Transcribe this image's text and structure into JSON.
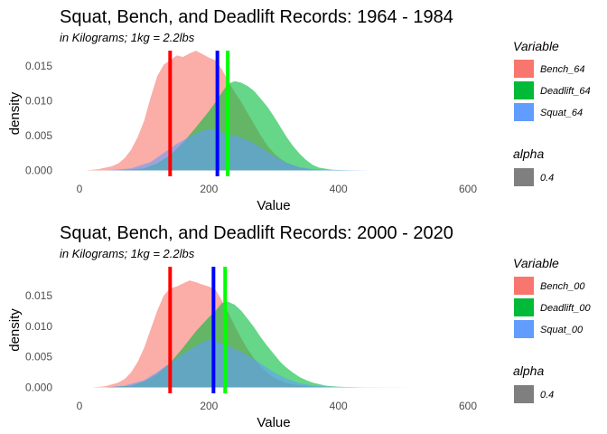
{
  "chart_data": [
    {
      "type": "area",
      "title": "Squat, Bench, and Deadlift Records: 1964 - 1984",
      "subtitle": "in Kilograms; 1kg = 2.2lbs",
      "xlabel": "Value",
      "ylabel": "density",
      "xlim": [
        0,
        600
      ],
      "ylim": [
        0,
        0.0195
      ],
      "x_ticks": [
        0,
        200,
        400,
        600
      ],
      "y_ticks": [
        0.0,
        0.005,
        0.01,
        0.015
      ],
      "y_tick_labels": [
        "0.000",
        "0.005",
        "0.010",
        "0.015"
      ],
      "grid": false,
      "legend_position": "right",
      "legend_title": "Variable",
      "alpha_title": "alpha",
      "alpha_value": "0.4",
      "series": [
        {
          "name": "Bench_64",
          "color": "#F8766D",
          "points": [
            [
              10,
              0
            ],
            [
              30,
              0.0002
            ],
            [
              50,
              0.0006
            ],
            [
              60,
              0.001
            ],
            [
              70,
              0.0018
            ],
            [
              80,
              0.003
            ],
            [
              90,
              0.0048
            ],
            [
              100,
              0.0072
            ],
            [
              110,
              0.0105
            ],
            [
              120,
              0.0135
            ],
            [
              130,
              0.0152
            ],
            [
              140,
              0.0158
            ],
            [
              150,
              0.0165
            ],
            [
              160,
              0.0163
            ],
            [
              170,
              0.0168
            ],
            [
              180,
              0.0172
            ],
            [
              190,
              0.0167
            ],
            [
              200,
              0.0162
            ],
            [
              210,
              0.0158
            ],
            [
              220,
              0.0145
            ],
            [
              230,
              0.0128
            ],
            [
              240,
              0.0112
            ],
            [
              250,
              0.0098
            ],
            [
              260,
              0.0082
            ],
            [
              270,
              0.0066
            ],
            [
              280,
              0.005
            ],
            [
              290,
              0.0036
            ],
            [
              300,
              0.0025
            ],
            [
              310,
              0.0017
            ],
            [
              320,
              0.0011
            ],
            [
              330,
              0.0007
            ],
            [
              340,
              0.0004
            ],
            [
              360,
              0.0001
            ],
            [
              380,
              0
            ]
          ]
        },
        {
          "name": "Deadlift_64",
          "color": "#00BA38",
          "points": [
            [
              60,
              0
            ],
            [
              100,
              0.0003
            ],
            [
              120,
              0.001
            ],
            [
              140,
              0.0022
            ],
            [
              160,
              0.004
            ],
            [
              180,
              0.0062
            ],
            [
              200,
              0.0085
            ],
            [
              210,
              0.0098
            ],
            [
              220,
              0.0112
            ],
            [
              230,
              0.0125
            ],
            [
              240,
              0.0128
            ],
            [
              250,
              0.0126
            ],
            [
              260,
              0.0121
            ],
            [
              270,
              0.0114
            ],
            [
              280,
              0.0103
            ],
            [
              290,
              0.0092
            ],
            [
              300,
              0.0078
            ],
            [
              310,
              0.0063
            ],
            [
              320,
              0.0048
            ],
            [
              330,
              0.0035
            ],
            [
              340,
              0.0024
            ],
            [
              350,
              0.0015
            ],
            [
              360,
              0.0008
            ],
            [
              370,
              0.0004
            ],
            [
              390,
              0.0001
            ],
            [
              420,
              0
            ]
          ]
        },
        {
          "name": "Squat_64",
          "color": "#619CFF",
          "points": [
            [
              40,
              0
            ],
            [
              80,
              0.0003
            ],
            [
              110,
              0.0012
            ],
            [
              130,
              0.0025
            ],
            [
              150,
              0.0038
            ],
            [
              170,
              0.0048
            ],
            [
              180,
              0.0053
            ],
            [
              190,
              0.0057
            ],
            [
              200,
              0.006
            ],
            [
              210,
              0.0058
            ],
            [
              220,
              0.0055
            ],
            [
              230,
              0.0052
            ],
            [
              240,
              0.005
            ],
            [
              250,
              0.0047
            ],
            [
              260,
              0.0043
            ],
            [
              270,
              0.0039
            ],
            [
              280,
              0.0033
            ],
            [
              290,
              0.0027
            ],
            [
              300,
              0.0021
            ],
            [
              320,
              0.0011
            ],
            [
              340,
              0.0005
            ],
            [
              360,
              0.0002
            ],
            [
              380,
              0.0001
            ],
            [
              450,
              0
            ]
          ]
        }
      ],
      "vlines": [
        {
          "x": 140,
          "color": "#FF0000"
        },
        {
          "x": 213,
          "color": "#0000FF"
        },
        {
          "x": 229,
          "color": "#00FF00"
        }
      ]
    },
    {
      "type": "area",
      "title": "Squat, Bench, and Deadlift Records: 2000 - 2020",
      "subtitle": "in Kilograms; 1kg = 2.2lbs",
      "xlabel": "Value",
      "ylabel": "density",
      "xlim": [
        0,
        600
      ],
      "ylim": [
        0,
        0.0195
      ],
      "x_ticks": [
        0,
        200,
        400,
        600
      ],
      "y_ticks": [
        0.0,
        0.005,
        0.01,
        0.015
      ],
      "y_tick_labels": [
        "0.000",
        "0.005",
        "0.010",
        "0.015"
      ],
      "grid": false,
      "legend_position": "right",
      "legend_title": "Variable",
      "alpha_title": "alpha",
      "alpha_value": "0.4",
      "series": [
        {
          "name": "Bench_00",
          "color": "#F8766D",
          "points": [
            [
              20,
              0
            ],
            [
              40,
              0.0002
            ],
            [
              60,
              0.0008
            ],
            [
              70,
              0.0014
            ],
            [
              80,
              0.0025
            ],
            [
              90,
              0.0042
            ],
            [
              100,
              0.0065
            ],
            [
              110,
              0.0095
            ],
            [
              120,
              0.0125
            ],
            [
              130,
              0.015
            ],
            [
              140,
              0.0162
            ],
            [
              150,
              0.0165
            ],
            [
              160,
              0.017
            ],
            [
              170,
              0.0175
            ],
            [
              180,
              0.0172
            ],
            [
              190,
              0.0168
            ],
            [
              200,
              0.0165
            ],
            [
              210,
              0.016
            ],
            [
              220,
              0.0142
            ],
            [
              230,
              0.0122
            ],
            [
              240,
              0.01
            ],
            [
              250,
              0.008
            ],
            [
              260,
              0.0062
            ],
            [
              270,
              0.0047
            ],
            [
              280,
              0.0034
            ],
            [
              290,
              0.0024
            ],
            [
              300,
              0.0016
            ],
            [
              320,
              0.0007
            ],
            [
              340,
              0.0003
            ],
            [
              360,
              0.0001
            ],
            [
              380,
              0
            ]
          ]
        },
        {
          "name": "Deadlift_00",
          "color": "#00BA38",
          "points": [
            [
              40,
              0
            ],
            [
              80,
              0.0003
            ],
            [
              100,
              0.001
            ],
            [
              120,
              0.0022
            ],
            [
              140,
              0.004
            ],
            [
              160,
              0.0065
            ],
            [
              180,
              0.0092
            ],
            [
              200,
              0.0115
            ],
            [
              210,
              0.0125
            ],
            [
              220,
              0.0138
            ],
            [
              230,
              0.014
            ],
            [
              240,
              0.0135
            ],
            [
              250,
              0.0125
            ],
            [
              260,
              0.0112
            ],
            [
              270,
              0.0098
            ],
            [
              280,
              0.0082
            ],
            [
              290,
              0.0068
            ],
            [
              300,
              0.0055
            ],
            [
              310,
              0.0042
            ],
            [
              320,
              0.0032
            ],
            [
              330,
              0.0024
            ],
            [
              340,
              0.0017
            ],
            [
              350,
              0.0012
            ],
            [
              360,
              0.0008
            ],
            [
              380,
              0.0003
            ],
            [
              400,
              0.0001
            ],
            [
              440,
              0
            ]
          ]
        },
        {
          "name": "Squat_00",
          "color": "#619CFF",
          "points": [
            [
              40,
              0
            ],
            [
              70,
              0.0003
            ],
            [
              100,
              0.0012
            ],
            [
              120,
              0.0025
            ],
            [
              140,
              0.004
            ],
            [
              160,
              0.0055
            ],
            [
              180,
              0.0068
            ],
            [
              190,
              0.0074
            ],
            [
              200,
              0.0078
            ],
            [
              210,
              0.0076
            ],
            [
              220,
              0.0072
            ],
            [
              230,
              0.0068
            ],
            [
              240,
              0.0063
            ],
            [
              250,
              0.0058
            ],
            [
              260,
              0.0052
            ],
            [
              270,
              0.0046
            ],
            [
              280,
              0.0039
            ],
            [
              290,
              0.0032
            ],
            [
              300,
              0.0025
            ],
            [
              320,
              0.0014
            ],
            [
              340,
              0.0007
            ],
            [
              360,
              0.0003
            ],
            [
              390,
              0.0001
            ],
            [
              430,
              5e-05
            ],
            [
              520,
              0
            ]
          ]
        }
      ],
      "vlines": [
        {
          "x": 140,
          "color": "#FF0000"
        },
        {
          "x": 207,
          "color": "#0000FF"
        },
        {
          "x": 225,
          "color": "#00FF00"
        }
      ]
    }
  ]
}
